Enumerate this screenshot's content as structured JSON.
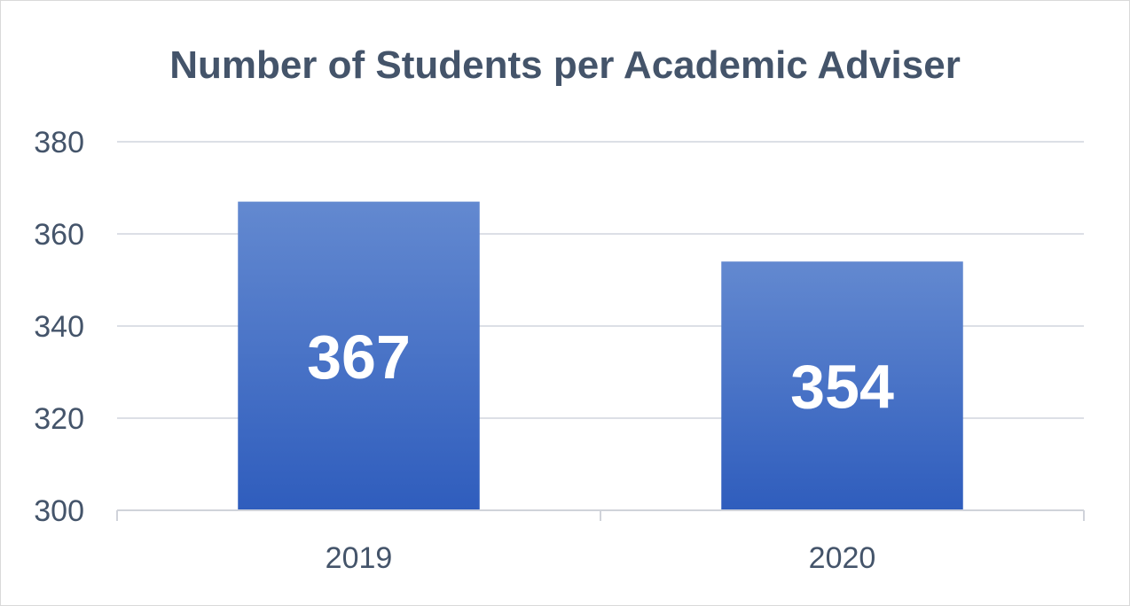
{
  "chart_data": {
    "type": "bar",
    "title": "Number of Students per Academic Adviser",
    "xlabel": "",
    "ylabel": "",
    "categories": [
      "2019",
      "2020"
    ],
    "values": [
      367,
      354
    ],
    "data_labels": [
      "367",
      "354"
    ],
    "ylim": [
      300,
      380
    ],
    "yticks": [
      "300",
      "320",
      "340",
      "360",
      "380"
    ],
    "grid": true,
    "legend": "none",
    "bar_color": "#4472c4",
    "bar_color_light": "#6389d0",
    "bar_color_dark": "#2f5dbd"
  }
}
